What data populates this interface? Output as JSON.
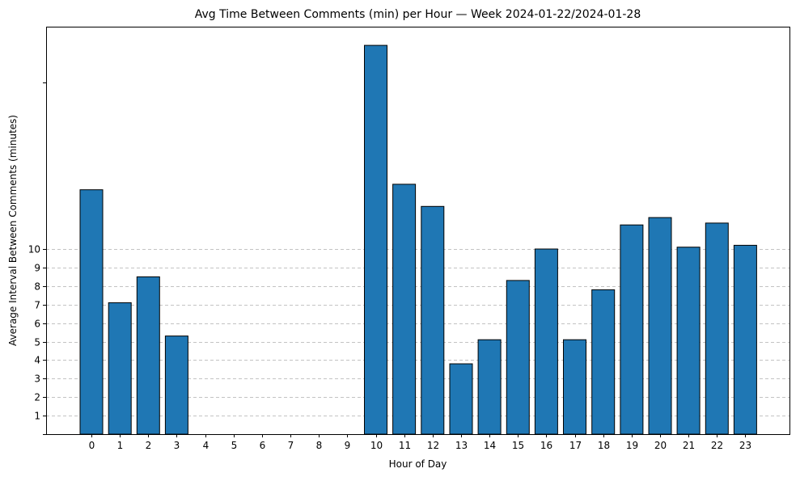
{
  "chart_data": {
    "type": "bar",
    "title": "Avg Time Between Comments (min) per Hour — Week 2024-01-22/2024-01-28",
    "xlabel": "Hour of Day",
    "ylabel": "Average Interval Between Comments (minutes)",
    "categories": [
      "0",
      "1",
      "2",
      "3",
      "4",
      "5",
      "6",
      "7",
      "8",
      "9",
      "10",
      "11",
      "12",
      "13",
      "14",
      "15",
      "16",
      "17",
      "18",
      "19",
      "20",
      "21",
      "22",
      "23"
    ],
    "values": [
      13.2,
      7.1,
      8.5,
      5.3,
      0,
      0,
      0,
      0,
      0,
      0,
      21.0,
      13.5,
      12.3,
      3.8,
      5.1,
      8.3,
      10.0,
      5.1,
      7.8,
      11.3,
      11.7,
      10.1,
      11.4,
      10.2
    ],
    "yticks": [
      1,
      2,
      3,
      4,
      5,
      6,
      7,
      8,
      9,
      10
    ],
    "ylim": [
      0,
      22
    ],
    "grid": "y-dashed",
    "bar_color": "#1f77b4",
    "edge_color": "#000000",
    "grid_color": "#b0b0b0"
  }
}
